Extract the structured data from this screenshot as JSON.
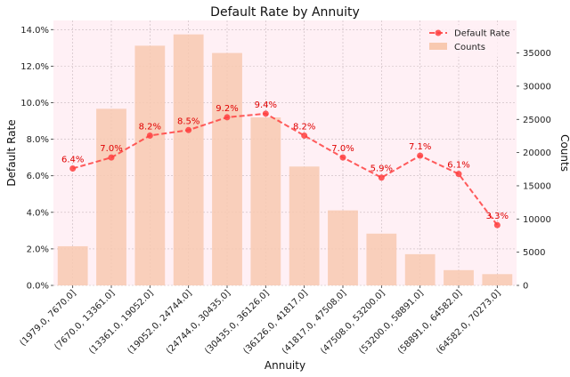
{
  "chart_data": {
    "type": "bar+line",
    "title": "Default Rate by Annuity",
    "xlabel": "Annuity",
    "ylabel_left": "Default Rate",
    "ylabel_right": "Counts",
    "categories": [
      "(1979.0, 7670.0]",
      "(7670.0, 13361.0]",
      "(13361.0, 19052.0]",
      "(19052.0, 24744.0]",
      "(24744.0, 30435.0]",
      "(30435.0, 36126.0]",
      "(36126.0, 41817.0]",
      "(41817.0, 47508.0]",
      "(47508.0, 53200.0]",
      "(53200.0, 58891.0]",
      "(58891.0, 64582.0]",
      "(64582.0, 70273.0]"
    ],
    "series": [
      {
        "name": "Counts",
        "type": "bar",
        "axis": "right",
        "color": "#f8c9b0",
        "values": [
          5900,
          26600,
          36100,
          37800,
          35000,
          25300,
          17900,
          11300,
          7800,
          4700,
          2300,
          1700
        ]
      },
      {
        "name": "Default Rate",
        "type": "line",
        "axis": "left",
        "color": "#ff4040",
        "values": [
          6.4,
          7.0,
          8.2,
          8.5,
          9.2,
          9.4,
          8.2,
          7.0,
          5.9,
          7.1,
          6.1,
          3.3
        ],
        "data_labels": [
          "6.4%",
          "7.0%",
          "8.2%",
          "8.5%",
          "9.2%",
          "9.4%",
          "8.2%",
          "7.0%",
          "5.9%",
          "7.1%",
          "6.1%",
          "3.3%"
        ]
      }
    ],
    "ylim_left": [
      0,
      14.5
    ],
    "ylim_right": [
      0,
      39900
    ],
    "yticks_left": [
      0,
      2,
      4,
      6,
      8,
      10,
      12,
      14
    ],
    "yticks_left_labels": [
      "0.0%",
      "2.0%",
      "4.0%",
      "6.0%",
      "8.0%",
      "10.0%",
      "12.0%",
      "14.0%"
    ],
    "yticks_right": [
      0,
      5000,
      10000,
      15000,
      20000,
      25000,
      30000,
      35000
    ],
    "yticks_right_labels": [
      "0",
      "5000",
      "10000",
      "15000",
      "20000",
      "25000",
      "30000",
      "35000"
    ],
    "grid": true,
    "legend_position": "top-right",
    "plot_background": "#fff0f5"
  }
}
